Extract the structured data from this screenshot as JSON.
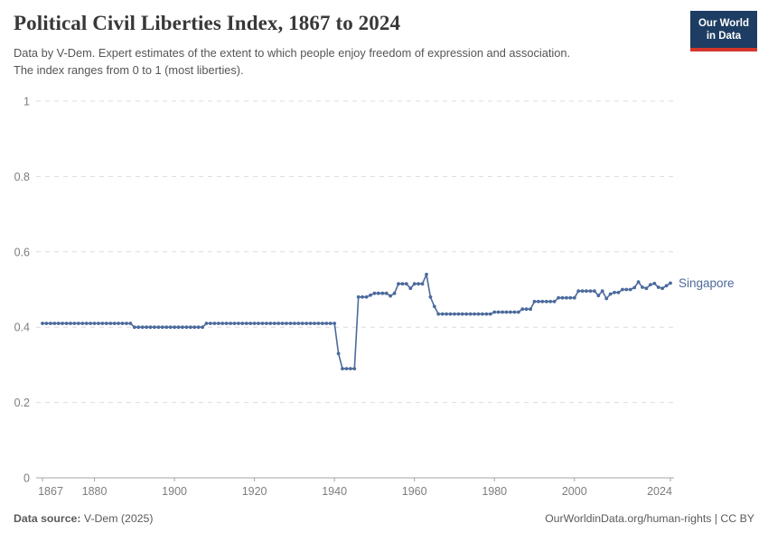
{
  "header": {
    "title": "Political Civil Liberties Index, 1867 to 2024",
    "subtitle_line1": "Data by V-Dem. Expert estimates of the extent to which people enjoy freedom of expression and association.",
    "subtitle_line2": "The index ranges from 0 to 1 (most liberties).",
    "logo": {
      "line1": "Our World",
      "line2": "in Data",
      "bg_color": "#1d3d63",
      "accent_color": "#d4362c"
    }
  },
  "chart_data": {
    "type": "line",
    "title": "Political Civil Liberties Index, 1867 to 2024",
    "xlabel": "",
    "ylabel": "",
    "xlim": [
      1867,
      2024
    ],
    "ylim": [
      0,
      1
    ],
    "x_ticks": [
      1867,
      1880,
      1900,
      1920,
      1940,
      1960,
      1980,
      2000,
      2024
    ],
    "y_ticks": [
      0,
      0.2,
      0.4,
      0.6,
      0.8,
      1
    ],
    "grid": "dashed-horizontal",
    "legend_position": "end-of-line-label",
    "marker": "dot-per-year",
    "series": [
      {
        "name": "Singapore",
        "color": "#4c6a9c",
        "start_year": 1867,
        "values": [
          0.41,
          0.41,
          0.41,
          0.41,
          0.41,
          0.41,
          0.41,
          0.41,
          0.41,
          0.41,
          0.41,
          0.41,
          0.41,
          0.41,
          0.41,
          0.41,
          0.41,
          0.41,
          0.41,
          0.41,
          0.41,
          0.41,
          0.41,
          0.4,
          0.4,
          0.4,
          0.4,
          0.4,
          0.4,
          0.4,
          0.4,
          0.4,
          0.4,
          0.4,
          0.4,
          0.4,
          0.4,
          0.4,
          0.4,
          0.4,
          0.4,
          0.41,
          0.41,
          0.41,
          0.41,
          0.41,
          0.41,
          0.41,
          0.41,
          0.41,
          0.41,
          0.41,
          0.41,
          0.41,
          0.41,
          0.41,
          0.41,
          0.41,
          0.41,
          0.41,
          0.41,
          0.41,
          0.41,
          0.41,
          0.41,
          0.41,
          0.41,
          0.41,
          0.41,
          0.41,
          0.41,
          0.41,
          0.41,
          0.41,
          0.33,
          0.29,
          0.29,
          0.29,
          0.29,
          0.48,
          0.48,
          0.48,
          0.485,
          0.49,
          0.49,
          0.49,
          0.49,
          0.483,
          0.49,
          0.515,
          0.515,
          0.515,
          0.503,
          0.515,
          0.515,
          0.515,
          0.54,
          0.48,
          0.455,
          0.435,
          0.435,
          0.435,
          0.435,
          0.435,
          0.435,
          0.435,
          0.435,
          0.435,
          0.435,
          0.435,
          0.435,
          0.435,
          0.435,
          0.44,
          0.44,
          0.44,
          0.44,
          0.44,
          0.44,
          0.44,
          0.448,
          0.448,
          0.448,
          0.468,
          0.468,
          0.468,
          0.468,
          0.468,
          0.468,
          0.478,
          0.478,
          0.478,
          0.478,
          0.478,
          0.496,
          0.496,
          0.496,
          0.496,
          0.496,
          0.484,
          0.496,
          0.476,
          0.488,
          0.492,
          0.492,
          0.5,
          0.5,
          0.5,
          0.505,
          0.52,
          0.506,
          0.503,
          0.513,
          0.516,
          0.506,
          0.503,
          0.51,
          0.517
        ]
      }
    ]
  },
  "footer": {
    "source_label": "Data source:",
    "source_value": " V-Dem (2025)",
    "right_text": "OurWorldinData.org/human-rights | CC BY"
  }
}
